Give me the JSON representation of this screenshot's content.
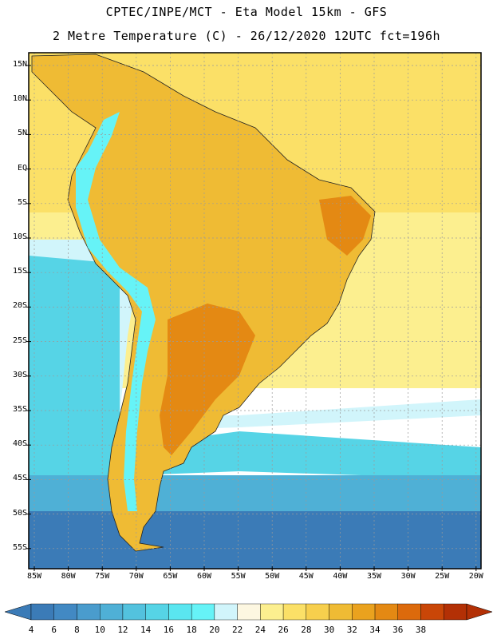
{
  "header": {
    "line1": "CPTEC/INPE/MCT -  Eta Model 15km - GFS",
    "line2": "2 Metre Temperature (C) - 26/12/2020 12UTC fct=196h"
  },
  "lat_labels": [
    "15N",
    "10N",
    "5N",
    "EQ",
    "5S",
    "10S",
    "15S",
    "20S",
    "25S",
    "30S",
    "35S",
    "40S",
    "45S",
    "50S",
    "55S"
  ],
  "lon_labels": [
    "85W",
    "80W",
    "75W",
    "70W",
    "65W",
    "60W",
    "55W",
    "50W",
    "45W",
    "40W",
    "35W",
    "30W",
    "25W",
    "20W"
  ],
  "colorbar": {
    "ticks": [
      "4",
      "6",
      "8",
      "10",
      "12",
      "14",
      "16",
      "18",
      "20",
      "22",
      "24",
      "26",
      "28",
      "30",
      "32",
      "34",
      "36",
      "38"
    ],
    "colors": [
      "#3b7bb7",
      "#4289c3",
      "#4a9ccd",
      "#4fb0d6",
      "#53c2de",
      "#56d4e6",
      "#5ae6f0",
      "#66f3f7",
      "#d1f5fb",
      "#fdf7e1",
      "#fcef8f",
      "#fbe067",
      "#f7cf4d",
      "#efbb34",
      "#eaa21e",
      "#e48913",
      "#dc6a0c",
      "#c94607",
      "#b33005"
    ],
    "underflow_color": "#3b7bb7",
    "overflow_color": "#b33005"
  },
  "legend_colors": {
    "ocean_warm": "#fbe067",
    "ocean_mild": "#fcef8f",
    "ocean_cool": "#d1f5fb",
    "ocean_cold": "#56d4e6",
    "ocean_colder": "#4fb0d6",
    "ocean_coldest": "#3b7bb7",
    "land_hot": "#efbb34",
    "land_hotter": "#e48913",
    "andes": "#66f3f7"
  }
}
